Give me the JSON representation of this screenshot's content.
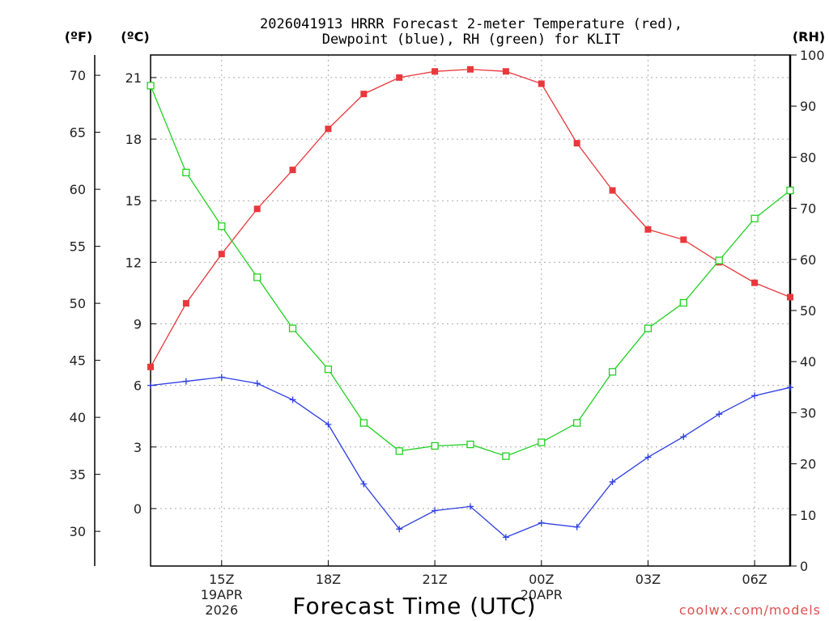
{
  "chart_data": {
    "type": "line",
    "title_line1": "2026041913 HRRR Forecast 2-meter Temperature (red),",
    "title_line2": "Dewpoint (blue), RH (green) for KLIT",
    "xlabel": "Forecast Time (UTC)",
    "credit": "coolwx.com/models",
    "units": {
      "fahrenheit": "(ºF)",
      "celsius": "(ºC)",
      "rh": "(RH)"
    },
    "x_hours": [
      13,
      14,
      15,
      16,
      17,
      18,
      19,
      20,
      21,
      22,
      23,
      24,
      25,
      26,
      27,
      28,
      29,
      30,
      31
    ],
    "xlim": [
      13,
      31
    ],
    "x_ticks": [
      {
        "hour": 15,
        "label": "15Z",
        "sub1": "19APR",
        "sub2": "2026"
      },
      {
        "hour": 18,
        "label": "18Z",
        "sub1": "",
        "sub2": ""
      },
      {
        "hour": 21,
        "label": "21Z",
        "sub1": "",
        "sub2": ""
      },
      {
        "hour": 24,
        "label": "00Z",
        "sub1": "20APR",
        "sub2": ""
      },
      {
        "hour": 27,
        "label": "03Z",
        "sub1": "",
        "sub2": ""
      },
      {
        "hour": 30,
        "label": "06Z",
        "sub1": "",
        "sub2": ""
      }
    ],
    "ylim_c": [
      -2.8,
      22.1
    ],
    "ylim_rh": [
      0,
      100
    ],
    "c_ticks": [
      "21",
      "18",
      "15",
      "12",
      "9",
      "6",
      "3",
      "0"
    ],
    "f_ticks": [
      "70",
      "65",
      "60",
      "55",
      "50",
      "45",
      "40",
      "35",
      "30"
    ],
    "rh_ticks": [
      "100",
      "90",
      "80",
      "70",
      "60",
      "50",
      "40",
      "30",
      "20",
      "10",
      "0"
    ],
    "colors": {
      "temperature": "#e8383c",
      "dewpoint": "#2c3ee0",
      "rh": "#22d022"
    },
    "series": [
      {
        "name": "Temperature (C)",
        "axis": "c",
        "marker": "filled-square",
        "values": [
          6.9,
          10.0,
          12.4,
          14.6,
          16.5,
          18.5,
          20.2,
          21.0,
          21.3,
          21.4,
          21.3,
          20.7,
          17.8,
          15.5,
          13.6,
          13.1,
          12.0,
          11.0,
          10.3
        ]
      },
      {
        "name": "Dewpoint (C)",
        "axis": "c",
        "marker": "plus",
        "values": [
          6.0,
          6.2,
          6.4,
          6.1,
          5.3,
          4.1,
          1.2,
          -1.0,
          -0.1,
          0.1,
          -1.4,
          -0.7,
          -0.9,
          1.3,
          2.5,
          3.5,
          4.6,
          5.5,
          5.9
        ]
      },
      {
        "name": "RH (%)",
        "axis": "rh",
        "marker": "open-square",
        "values": [
          94.0,
          77.0,
          66.5,
          56.5,
          46.5,
          38.5,
          28.0,
          22.5,
          23.5,
          23.8,
          21.5,
          24.2,
          28.0,
          38.0,
          46.5,
          51.5,
          59.8,
          68.0,
          73.5
        ]
      }
    ]
  }
}
